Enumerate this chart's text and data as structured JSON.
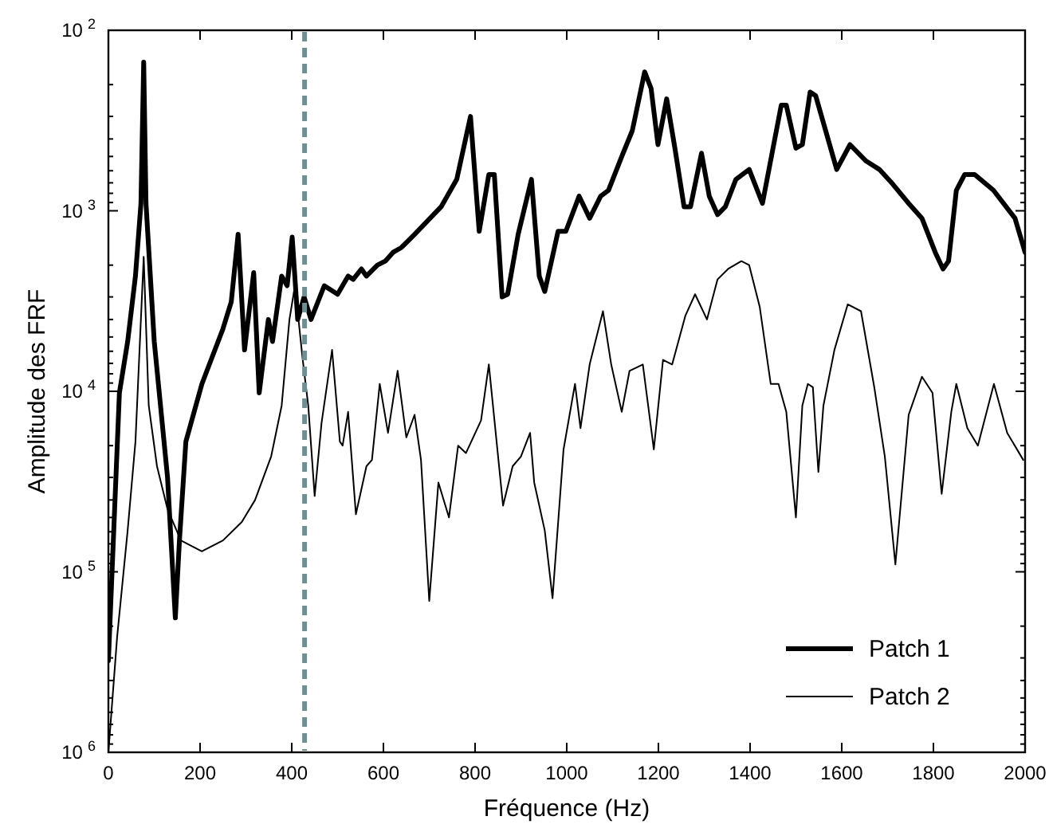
{
  "chart_data": {
    "type": "line",
    "xlabel": "Fréquence (Hz)",
    "ylabel": "Amplitude des FRF",
    "log": "y",
    "grid": false,
    "legend": "bottom right",
    "marker": "none",
    "line_style": "solid",
    "xlim": [
      0,
      2000
    ],
    "xticks": [
      0,
      200,
      400,
      600,
      800,
      1000,
      1200,
      1400,
      1600,
      1800,
      2000
    ],
    "ylim": [
      1000000,
      100
    ],
    "yticks": [
      {
        "value": 1000000,
        "label": "10$^{6}$"
      },
      {
        "value": 100000,
        "label": "10$^{5}$"
      },
      {
        "value": 10000,
        "label": "10$^{4}$"
      },
      {
        "value": 1000,
        "label": "10$^{3}$"
      },
      {
        "value": 100,
        "label": "10$^{2}$"
      }
    ],
    "ref_lines": [
      {
        "axis": "x",
        "value": 428,
        "color": "#6e8f93",
        "line_style": "dashed"
      }
    ],
    "series": [
      {
        "name": "Patch 1",
        "color": "#000000",
        "x": [
          0,
          24,
          42,
          59,
          71,
          77,
          82,
          100,
          129,
          146,
          155,
          169,
          204,
          250,
          268,
          283,
          297,
          317,
          329,
          349,
          358,
          378,
          390,
          401,
          413,
          427,
          442,
          471,
          500,
          523,
          534,
          552,
          563,
          587,
          604,
          621,
          639,
          668,
          726,
          760,
          790,
          809,
          830,
          842,
          859,
          871,
          894,
          923,
          940,
          952,
          981,
          998,
          1027,
          1050,
          1074,
          1091,
          1120,
          1143,
          1170,
          1184,
          1199,
          1218,
          1236,
          1256,
          1270,
          1294,
          1311,
          1329,
          1346,
          1369,
          1398,
          1427,
          1468,
          1479,
          1500,
          1514,
          1531,
          1543,
          1589,
          1618,
          1653,
          1682,
          1711,
          1746,
          1775,
          1804,
          1821,
          1833,
          1850,
          1868,
          1890,
          1931,
          1978,
          2000
        ],
        "values": [
          310000.0,
          10200.0,
          5300.0,
          2300.0,
          910.0,
          150.0,
          910.0,
          5300.0,
          30000.0,
          180000.0,
          67000.0,
          19000.0,
          9100.0,
          4500.0,
          3200.0,
          1350.0,
          5900.0,
          2200.0,
          10200.0,
          4000.0,
          5300.0,
          2300.0,
          2600.0,
          1400.0,
          4000.0,
          3000.0,
          4000.0,
          2600.0,
          2900.0,
          2300.0,
          2400.0,
          2100.0,
          2300.0,
          2000.0,
          1900.0,
          1700.0,
          1600.0,
          1350.0,
          950.0,
          670.0,
          300.0,
          1300.0,
          630.0,
          630.0,
          3000.0,
          2900.0,
          1350.0,
          670.0,
          2300.0,
          2800.0,
          1300.0,
          1300.0,
          830.0,
          1100.0,
          830.0,
          770.0,
          500.0,
          360.0,
          170.0,
          210.0,
          430.0,
          240.0,
          450.0,
          950.0,
          950.0,
          480.0,
          830.0,
          1050.0,
          950.0,
          670.0,
          590.0,
          910.0,
          260.0,
          260.0,
          450.0,
          430.0,
          220.0,
          230.0,
          590.0,
          430.0,
          530.0,
          590.0,
          710.0,
          910.0,
          1100.0,
          1700.0,
          2100.0,
          1900.0,
          770.0,
          630.0,
          630.0,
          770.0,
          1100.0,
          1700.0
        ]
      },
      {
        "name": "Patch 2",
        "color": "#000000",
        "x": [
          0,
          19,
          42,
          59,
          77,
          88,
          106,
          129,
          158,
          204,
          250,
          291,
          320,
          355,
          378,
          395,
          407,
          424,
          436,
          450,
          465,
          488,
          505,
          511,
          523,
          540,
          563,
          575,
          592,
          610,
          631,
          650,
          668,
          682,
          700,
          720,
          743,
          763,
          780,
          813,
          830,
          861,
          882,
          900,
          920,
          929,
          952,
          969,
          993,
          1018,
          1030,
          1050,
          1079,
          1097,
          1120,
          1137,
          1166,
          1190,
          1210,
          1230,
          1259,
          1280,
          1306,
          1329,
          1352,
          1381,
          1398,
          1421,
          1445,
          1462,
          1479,
          1500,
          1514,
          1526,
          1537,
          1549,
          1560,
          1584,
          1613,
          1642,
          1671,
          1694,
          1717,
          1746,
          1775,
          1798,
          1818,
          1839,
          1850,
          1874,
          1897,
          1932,
          1961,
          1996
        ],
        "values": [
          1000000.0,
          230000.0,
          59000.0,
          19000.0,
          1800.0,
          12000.0,
          26000.0,
          45000.0,
          67000.0,
          77000.0,
          67000.0,
          53000.0,
          40000.0,
          23000.0,
          12000.0,
          4000.0,
          2600.0,
          6700.0,
          12000.0,
          38000.0,
          15000.0,
          5900.0,
          19000.0,
          20000.0,
          13000.0,
          48000.0,
          26000.0,
          24000.0,
          9100.0,
          17000.0,
          7700.0,
          18000.0,
          13500.0,
          24000.0,
          145000.0,
          32000.0,
          50000.0,
          20000.0,
          22000.0,
          14500.0,
          7100.0,
          43000.0,
          26000.0,
          23000.0,
          17000.0,
          32000.0,
          59000.0,
          140000.0,
          21000.0,
          9100.0,
          16000.0,
          7100.0,
          3600.0,
          7100.0,
          13000.0,
          7700.0,
          7100.0,
          21000.0,
          6700.0,
          7100.0,
          3800.0,
          2900.0,
          4000.0,
          2400.0,
          2100.0,
          1900.0,
          2000.0,
          3400.0,
          9100.0,
          9100.0,
          13000.0,
          50000.0,
          12000.0,
          9100.0,
          9500.0,
          28000.0,
          12000.0,
          5900.0,
          3300.0,
          3600.0,
          9500.0,
          23000.0,
          91000.0,
          13500.0,
          8300.0,
          10200.0,
          37000.0,
          13000.0,
          9100.0,
          16000.0,
          20000.0,
          9100.0,
          17000.0,
          24000.0
        ]
      }
    ]
  }
}
